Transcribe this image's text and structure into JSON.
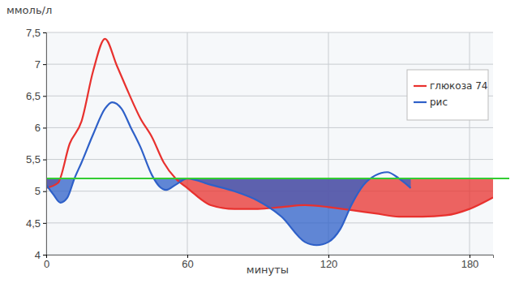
{
  "chart_data": {
    "type": "line",
    "x_label": "минуты",
    "y_label": "ммоль/л",
    "xlim": [
      0,
      190
    ],
    "xticks": [
      0,
      60,
      120,
      180
    ],
    "ylim": [
      4,
      7.5
    ],
    "yticks": [
      4,
      {
        "value": 4.5,
        "label": "4,5"
      },
      5,
      {
        "value": 5.5,
        "label": "5,5"
      },
      6,
      {
        "value": 6.5,
        "label": "6,5"
      },
      7,
      {
        "value": 7.5,
        "label": "7,5"
      }
    ],
    "grid": true,
    "legend": "top-right",
    "reference_line": {
      "value": 5.2,
      "color": "#33cc33"
    },
    "series": [
      {
        "name": "глюкоза 74",
        "color": "#e8312e",
        "x": [
          0,
          5,
          10,
          15,
          20,
          25,
          30,
          35,
          40,
          45,
          50,
          55,
          60,
          70,
          80,
          90,
          100,
          110,
          120,
          130,
          140,
          150,
          160,
          170,
          180,
          190
        ],
        "values": [
          5.05,
          5.13,
          5.75,
          6.1,
          6.9,
          7.4,
          6.98,
          6.55,
          6.15,
          5.85,
          5.45,
          5.2,
          5.05,
          4.78,
          4.72,
          4.72,
          4.75,
          4.78,
          4.75,
          4.7,
          4.65,
          4.6,
          4.6,
          4.62,
          4.72,
          4.9
        ]
      },
      {
        "name": "рис",
        "color": "#2e60c8",
        "x": [
          0,
          3,
          6,
          9,
          12,
          15,
          20,
          25,
          28,
          32,
          36,
          40,
          45,
          48,
          51,
          55,
          60,
          70,
          80,
          90,
          100,
          110,
          115,
          120,
          125,
          130,
          135,
          140,
          145,
          150,
          155
        ],
        "values": [
          5.1,
          4.95,
          4.82,
          4.9,
          5.2,
          5.45,
          5.9,
          6.3,
          6.4,
          6.3,
          6.0,
          5.7,
          5.25,
          5.08,
          5.02,
          5.1,
          5.2,
          5.1,
          5.0,
          4.85,
          4.6,
          4.2,
          4.15,
          4.2,
          4.4,
          4.8,
          5.1,
          5.25,
          5.3,
          5.2,
          5.05
        ]
      }
    ]
  }
}
